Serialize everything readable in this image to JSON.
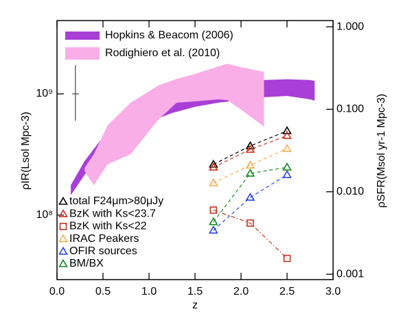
{
  "chart_data": {
    "type": "band_scatter",
    "xlabel": "z",
    "ylabel": "ρIR(Lsol Mpc-3)",
    "y2label": "ρSFR(Msol yr-1 Mpc-3)",
    "xlim": [
      0,
      3
    ],
    "xticks": [
      {
        "value": 0,
        "label": "0.0"
      },
      {
        "value": 0.5,
        "label": "0.5"
      },
      {
        "value": 1,
        "label": "1.0"
      },
      {
        "value": 1.5,
        "label": "1.5"
      },
      {
        "value": 2,
        "label": "2.0"
      },
      {
        "value": 2.5,
        "label": "2.5"
      },
      {
        "value": 3,
        "label": "3.0"
      }
    ],
    "ylim": [
      29400000,
      4020000000
    ],
    "yticks": [
      {
        "value": 100000000,
        "label": "10⁸"
      },
      {
        "value": 1000000000,
        "label": "10⁹"
      }
    ],
    "y2lim": [
      0.00086,
      1.19
    ],
    "y2ticks": [
      {
        "value": 1,
        "label": "1.000"
      },
      {
        "value": 0.1,
        "label": "0.100"
      },
      {
        "value": 0.01,
        "label": "0.010"
      },
      {
        "value": 0.001,
        "label": "0.001"
      }
    ],
    "log_scale": true,
    "bands": [
      {
        "name": "Hopkins & Beacom (2006)",
        "color": "#a83fd6",
        "x": [
          0.15,
          0.3,
          0.5,
          0.75,
          1.0,
          1.25,
          1.5,
          1.75,
          2.0,
          2.25,
          2.5,
          2.75,
          2.8
        ],
        "upper": [
          177000000,
          279000000,
          441000000,
          634000000,
          845000000,
          1000000000,
          1120000000,
          1220000000,
          1250000000,
          1300000000,
          1320000000,
          1300000000,
          1280000000
        ],
        "lower": [
          146000000,
          215000000,
          318000000,
          470000000,
          586000000,
          695000000,
          782000000,
          845000000,
          889000000,
          937000000,
          961000000,
          901000000,
          879000000
        ]
      },
      {
        "name": "Rodighiero et al. (2010)",
        "color": "#f9aee8",
        "x": [
          0.3,
          0.4,
          0.55,
          0.8,
          1.1,
          1.3,
          1.5,
          1.75,
          1.85,
          2.0,
          2.25
        ],
        "upper": [
          245000000,
          318000000,
          550000000,
          845000000,
          1170000000,
          1330000000,
          1460000000,
          1680000000,
          1770000000,
          1660000000,
          1520000000
        ],
        "lower": [
          230000000,
          177000000,
          262000000,
          318000000,
          610000000,
          845000000,
          867000000,
          901000000,
          889000000,
          741000000,
          536000000
        ]
      }
    ],
    "error_bar": {
      "x": 0.2,
      "value": 1000000000,
      "low": 600000000,
      "high": 1730000000
    },
    "x": [
      1.7,
      2.1,
      2.5
    ],
    "series": [
      {
        "name": "total F24μm>80μJy",
        "color": "#000000",
        "marker": "triangle",
        "line": "dashed",
        "values": [
          262000000,
          372000000,
          495000000
        ]
      },
      {
        "name": "BzK with Ks<23.7",
        "color": "#d0301a",
        "marker": "triangle",
        "line": "dashed",
        "values": [
          248000000,
          348000000,
          452000000
        ]
      },
      {
        "name": "BzK with Ks<22",
        "color": "#c0341e",
        "marker": "square",
        "line": "dashdot",
        "values": [
          110000000,
          86000000,
          44000000
        ]
      },
      {
        "name": "IRAC Peakers",
        "color": "#f2b055",
        "marker": "triangle",
        "line": "dashed",
        "values": [
          184000000,
          258000000,
          353000000
        ]
      },
      {
        "name": "OFIR sources",
        "color": "#2a45e6",
        "marker": "triangle",
        "line": "dashed",
        "values": [
          75000000,
          140000000,
          215000000
        ]
      },
      {
        "name": "BM/BX",
        "color": "#148a1e",
        "marker": "triangle",
        "line": "dashed",
        "values": [
          88000000,
          221000000,
          248000000
        ]
      }
    ]
  }
}
